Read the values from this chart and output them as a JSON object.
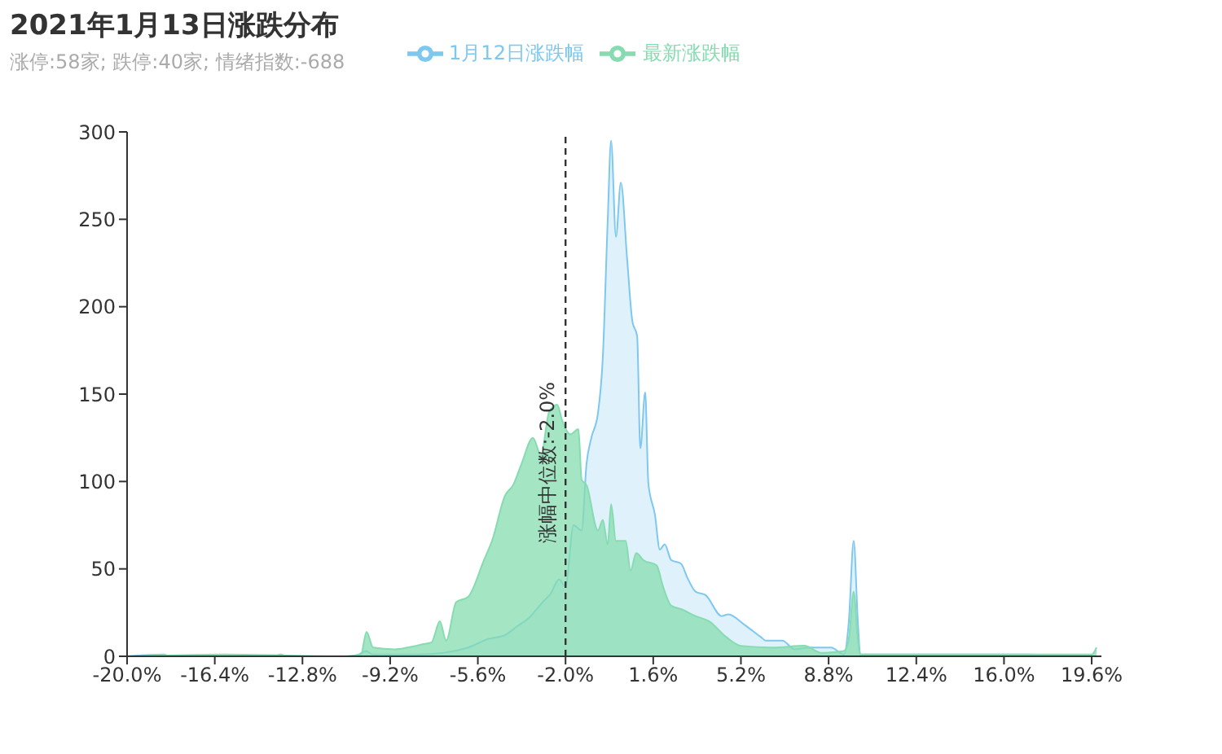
{
  "chart_data": {
    "type": "area",
    "title": "2021年1月13日涨跌分布",
    "subtitle": "涨停:58家; 跌停:40家; 情绪指数:-688",
    "series": [
      {
        "name": "1月12日涨跌幅",
        "color": "#7ec8f0",
        "x": [
          -20,
          -18.5,
          -18.2,
          -14,
          -13.7,
          -13.4,
          -11,
          -10.5,
          -10.2,
          -9.9,
          -9.2,
          -8,
          -7,
          -6,
          -5.15,
          -4.5,
          -4,
          -3.5,
          -2.94,
          -2.6,
          -2.27,
          -2,
          -1.67,
          -1.34,
          -1.14,
          -0.94,
          -0.67,
          -0.47,
          -0.27,
          -0.13,
          0.07,
          0.27,
          0.53,
          0.74,
          0.94,
          1.07,
          1.27,
          1.4,
          1.67,
          1.87,
          2.07,
          2.34,
          2.74,
          3.0,
          3.34,
          3.75,
          4.41,
          4.68,
          5.35,
          6.02,
          6.22,
          6.9,
          7.4,
          8.03,
          8.9,
          9.43,
          9.63,
          9.83,
          10.0,
          10.1,
          12,
          14,
          17,
          19.6,
          20
        ],
        "values": [
          0,
          1,
          0,
          0,
          1,
          0,
          0,
          1,
          3,
          1,
          1,
          1,
          2,
          5,
          10,
          12,
          17,
          22,
          31,
          36,
          44,
          40,
          75,
          72,
          110,
          125,
          139,
          171,
          249,
          295,
          240,
          271,
          227,
          192,
          183,
          119,
          151,
          99,
          81,
          61,
          64,
          55,
          53,
          45,
          37,
          35,
          23,
          24,
          18,
          11,
          9,
          9,
          4,
          5,
          5,
          1,
          20,
          66,
          20,
          1,
          1,
          1,
          1,
          0,
          0
        ]
      },
      {
        "name": "最新涨跌幅",
        "color": "#86dcb0",
        "x": [
          -20,
          -16,
          -11,
          -10.4,
          -10.17,
          -9.9,
          -9,
          -8.5,
          -7.83,
          -7.5,
          -7.16,
          -6.9,
          -6.49,
          -6.0,
          -5.35,
          -5.02,
          -4.48,
          -4.15,
          -3.81,
          -3.34,
          -3.01,
          -2.67,
          -2.34,
          -2.14,
          -1.81,
          -1.47,
          -1.34,
          -1.14,
          -0.67,
          -0.47,
          -0.27,
          -0.13,
          0.07,
          0.47,
          0.67,
          0.9,
          1.2,
          1.74,
          2.0,
          2.34,
          2.74,
          3.34,
          3.9,
          4.6,
          5.2,
          6.5,
          7.8,
          8.5,
          9.43,
          9.63,
          9.83,
          10.0,
          10.1,
          19.6,
          19.8
        ],
        "values": [
          0,
          1,
          0,
          1,
          14,
          5,
          4,
          5,
          7,
          8,
          20,
          9,
          31,
          34,
          55,
          66,
          92,
          98,
          110,
          125,
          115,
          140,
          144,
          135,
          127,
          130,
          101,
          98,
          72,
          78,
          64,
          87,
          66,
          66,
          49,
          59,
          55,
          52,
          40,
          29,
          27,
          23,
          20,
          11,
          6,
          5,
          6,
          2,
          3,
          10,
          37,
          10,
          1,
          1,
          5
        ]
      }
    ],
    "xlim": [
      -20,
      20
    ],
    "xticks": [
      {
        "value": -20,
        "label": "-20.0%"
      },
      {
        "value": -16.4,
        "label": "-16.4%"
      },
      {
        "value": -12.8,
        "label": "-12.8%"
      },
      {
        "value": -9.2,
        "label": "-9.2%"
      },
      {
        "value": -5.6,
        "label": "-5.6%"
      },
      {
        "value": -2,
        "label": "-2.0%"
      },
      {
        "value": 1.6,
        "label": "1.6%"
      },
      {
        "value": 5.2,
        "label": "5.2%"
      },
      {
        "value": 8.8,
        "label": "8.8%"
      },
      {
        "value": 12.4,
        "label": "12.4%"
      },
      {
        "value": 16,
        "label": "16.0%"
      },
      {
        "value": 19.6,
        "label": "19.6%"
      }
    ],
    "ylim": [
      0,
      300
    ],
    "yticks": [
      0,
      50,
      100,
      150,
      200,
      250,
      300
    ],
    "ref_lines": [
      {
        "axis": "x",
        "value": -2.0,
        "label": "涨幅中位数:-2.0%",
        "color": "#333333",
        "line_style": "dashed"
      }
    ],
    "legend": "top"
  }
}
